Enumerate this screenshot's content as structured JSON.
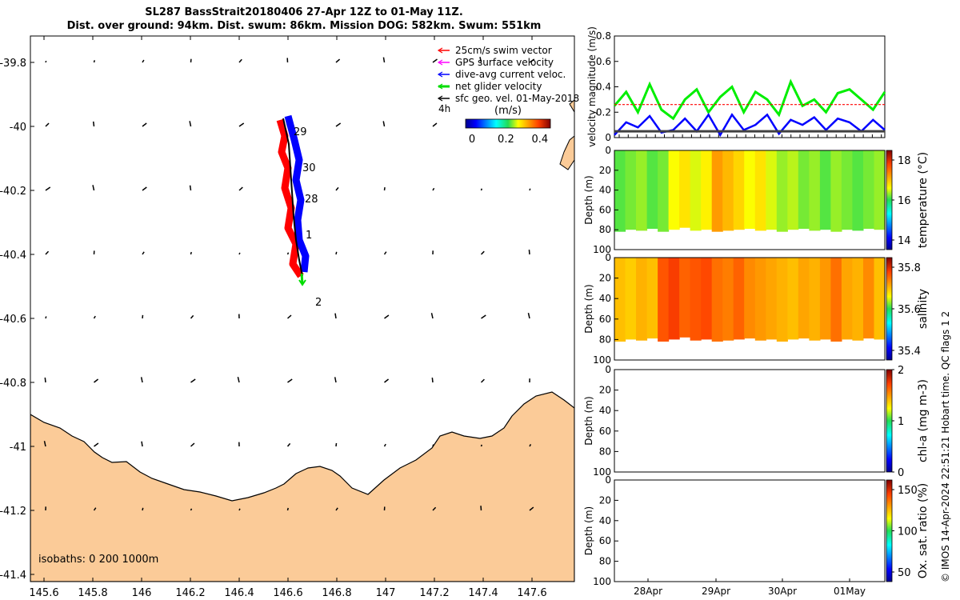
{
  "header": {
    "title_line1": "SL287 BassStrait20180406 27-Apr 12Z to 01-May 11Z.",
    "title_line2": "Dist. over ground: 94km. Dist. swum: 86km. Mission DOG: 582km. Swum: 551km"
  },
  "map": {
    "x_ticks": [
      "145.6",
      "145.8",
      "146",
      "146.2",
      "146.4",
      "146.6",
      "146.8",
      "147",
      "147.2",
      "147.4",
      "147.6"
    ],
    "y_ticks": [
      "-39.8",
      "-40",
      "-40.2",
      "-40.4",
      "-40.6",
      "-40.8",
      "-41",
      "-41.2",
      "-41.4"
    ],
    "legend": [
      {
        "label": "25cm/s swim vector",
        "color": "#ff0000"
      },
      {
        "label": "GPS surface velocity",
        "color": "#ff00ff"
      },
      {
        "label": "dive-avg current veloc.",
        "color": "#0000ff"
      },
      {
        "label": "net glider velocity",
        "color": "#00dd00"
      },
      {
        "label": "sfc geo. vel. 01-May-2018",
        "color": "#000000"
      }
    ],
    "legend_note": "4h",
    "colorbar_title": "(m/s)",
    "colorbar_ticks": [
      "0",
      "0.2",
      "0.4"
    ],
    "day_labels": [
      "29",
      "30",
      "28",
      "1",
      "2"
    ],
    "isobaths_label": "isobaths: 0   200  1000m",
    "land_color": "#fbcb98"
  },
  "chart_data": [
    {
      "type": "line",
      "ylabel": "velocity magnitude (m/s)",
      "ylim": [
        0,
        0.8
      ],
      "y_ticks": [
        "0",
        "0.2",
        "0.4",
        "0.6",
        "0.8"
      ],
      "series": [
        {
          "color": "#00ee00",
          "values": [
            0.25,
            0.36,
            0.2,
            0.42,
            0.22,
            0.15,
            0.3,
            0.38,
            0.2,
            0.32,
            0.4,
            0.2,
            0.36,
            0.3,
            0.18,
            0.44,
            0.25,
            0.3,
            0.2,
            0.35,
            0.38,
            0.3,
            0.22,
            0.36
          ]
        },
        {
          "color": "#ff0000",
          "values": [
            0.26,
            0.26,
            0.26,
            0.26,
            0.26,
            0.26,
            0.26,
            0.26,
            0.26,
            0.26,
            0.26,
            0.26,
            0.26,
            0.26,
            0.26,
            0.26,
            0.26,
            0.26,
            0.26,
            0.26,
            0.26,
            0.26,
            0.26,
            0.26
          ]
        },
        {
          "color": "#0000ff",
          "values": [
            0.02,
            0.12,
            0.08,
            0.17,
            0.04,
            0.06,
            0.15,
            0.05,
            0.18,
            0.02,
            0.18,
            0.06,
            0.1,
            0.18,
            0.03,
            0.14,
            0.1,
            0.16,
            0.06,
            0.15,
            0.12,
            0.05,
            0.14,
            0.06
          ]
        },
        {
          "color": "#404040",
          "values": [
            0.05,
            0.05,
            0.05,
            0.05,
            0.05,
            0.05,
            0.05,
            0.05,
            0.05,
            0.05,
            0.05,
            0.05,
            0.05,
            0.05,
            0.05,
            0.05,
            0.05,
            0.05,
            0.05,
            0.05,
            0.05,
            0.05,
            0.05,
            0.05
          ]
        }
      ]
    },
    {
      "type": "heatmap",
      "ylabel": "Depth (m)",
      "y_ticks": [
        "0",
        "20",
        "40",
        "60",
        "80",
        "100"
      ],
      "colorbar_label": "temperature (°C)",
      "colorbar_ticks": [
        "18",
        "16",
        "14"
      ],
      "colorbar_range": [
        13.5,
        19
      ],
      "bottom_depths": [
        82,
        80,
        81,
        79,
        82,
        80,
        78,
        81,
        80,
        82,
        81,
        80,
        79,
        81,
        80,
        82,
        80,
        79,
        81,
        80,
        82,
        80,
        81,
        79,
        80
      ],
      "column_values": [
        16.4,
        16.5,
        16.6,
        16.4,
        16.5,
        16.9,
        17.1,
        16.8,
        17.0,
        17.6,
        17.4,
        17.2,
        16.9,
        17.1,
        16.8,
        16.6,
        16.7,
        16.5,
        16.6,
        16.4,
        16.6,
        16.5,
        16.4,
        16.5,
        16.6
      ]
    },
    {
      "type": "heatmap",
      "ylabel": "Depth (m)",
      "y_ticks": [
        "0",
        "20",
        "40",
        "60",
        "80",
        "100"
      ],
      "colorbar_label": "salinity",
      "colorbar_ticks": [
        "35.8",
        "35.6",
        "35.4"
      ],
      "colorbar_range": [
        35.3,
        35.9
      ],
      "bottom_depths": [
        82,
        80,
        81,
        79,
        82,
        80,
        78,
        81,
        80,
        82,
        81,
        80,
        79,
        81,
        80,
        82,
        80,
        79,
        81,
        80,
        82,
        80,
        81,
        79,
        80
      ],
      "column_values": [
        35.72,
        35.71,
        35.73,
        35.72,
        35.8,
        35.82,
        35.79,
        35.8,
        35.81,
        35.78,
        35.77,
        35.79,
        35.76,
        35.75,
        35.74,
        35.73,
        35.72,
        35.74,
        35.73,
        35.75,
        35.78,
        35.74,
        35.73,
        35.76,
        35.72
      ]
    },
    {
      "type": "heatmap",
      "ylabel": "Depth (m)",
      "y_ticks": [
        "0",
        "20",
        "40",
        "60",
        "80",
        "100"
      ],
      "colorbar_label": "chl-a (mg m-3)",
      "colorbar_ticks": [
        "2",
        "1",
        "0"
      ]
    },
    {
      "type": "heatmap",
      "ylabel": "Depth (m)",
      "y_ticks": [
        "0",
        "20",
        "40",
        "60",
        "80",
        "100"
      ],
      "colorbar_label": "Ox. sat. ratio (%)",
      "colorbar_ticks": [
        "150",
        "100",
        "50"
      ],
      "x_ticks": [
        "28Apr",
        "29Apr",
        "30Apr",
        "01May"
      ]
    }
  ],
  "footer": {
    "side_note": "© IMOS 14-Apr-2024 22:51:21 Hobart time. QC flags 1  2"
  }
}
